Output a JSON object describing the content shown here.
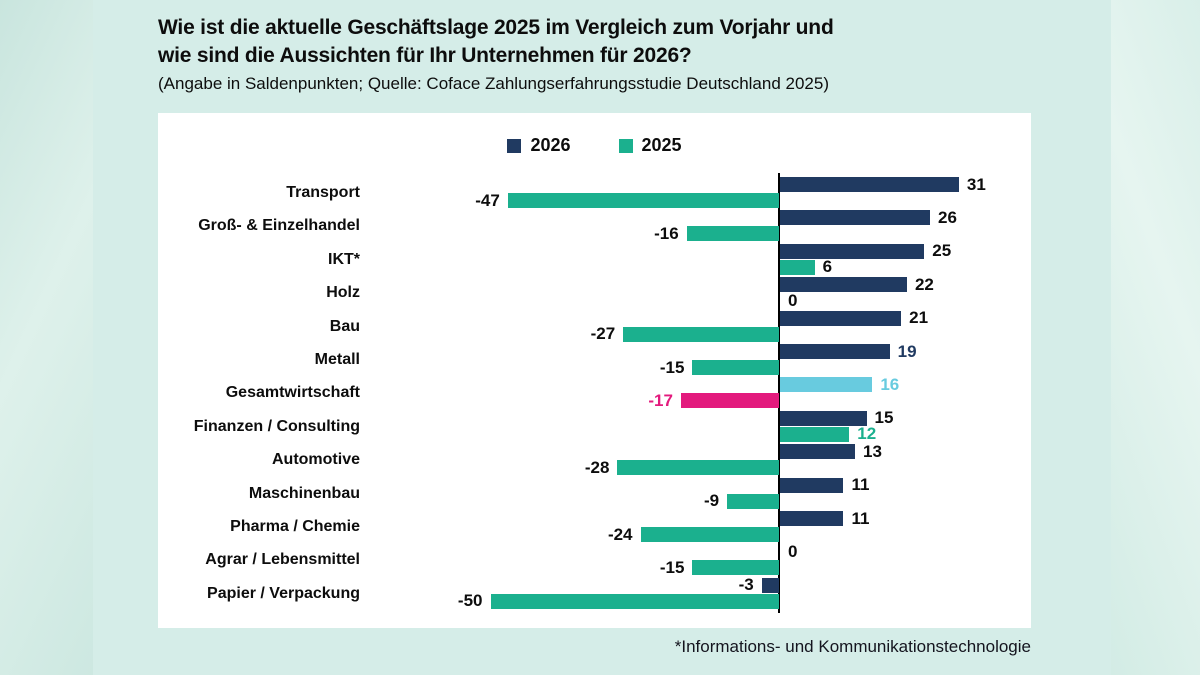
{
  "colors": {
    "navy": "#203a61",
    "teal": "#1bb08e",
    "light_blue": "#68cbdf",
    "pink": "#e31a7d",
    "background": "#d5ede8",
    "panel": "#ffffff",
    "text": "#0d0d0d"
  },
  "chart_data": {
    "type": "bar",
    "orientation": "horizontal",
    "title_line1": "Wie ist die aktuelle Geschäftslage 2025 im Vergleich zum Vorjahr und",
    "title_line2": "wie sind die Aussichten für Ihr Unternehmen für 2026?",
    "subtitle": "(Angabe in Saldenpunkten; Quelle: Coface Zahlungserfahrungsstudie Deutschland 2025)",
    "footnote": "*Informations- und Kommunikationstechnologie",
    "unit": "Saldenpunkte",
    "xlim": [
      -55,
      38
    ],
    "grid": false,
    "axis_ticks_visible": false,
    "value_labels": true,
    "legend_position": "top-center",
    "legend": [
      {
        "label": "2026",
        "color_key": "navy"
      },
      {
        "label": "2025",
        "color_key": "teal"
      }
    ],
    "categories": [
      "Transport",
      "Groß- & Einzelhandel",
      "IKT*",
      "Holz",
      "Bau",
      "Metall",
      "Gesamtwirtschaft",
      "Finanzen / Consulting",
      "Automotive",
      "Maschinenbau",
      "Pharma / Chemie",
      "Agrar / Lebensmittel",
      "Papier / Verpackung"
    ],
    "series": [
      {
        "name": "2026",
        "values": [
          31,
          26,
          25,
          22,
          21,
          19,
          16,
          15,
          13,
          11,
          11,
          0,
          -3
        ]
      },
      {
        "name": "2025",
        "values": [
          -47,
          -16,
          6,
          0,
          -27,
          -15,
          -17,
          12,
          -28,
          -9,
          -24,
          -15,
          -50
        ]
      }
    ],
    "rows": [
      {
        "category": "Transport",
        "v2026": 31,
        "v2025": -47
      },
      {
        "category": "Groß- & Einzelhandel",
        "v2026": 26,
        "v2025": -16
      },
      {
        "category": "IKT*",
        "v2026": 25,
        "v2025": 6
      },
      {
        "category": "Holz",
        "v2026": 22,
        "v2025": 0
      },
      {
        "category": "Bau",
        "v2026": 21,
        "v2025": -27
      },
      {
        "category": "Metall",
        "v2026": 19,
        "v2025": -15,
        "label2026_color": "navy"
      },
      {
        "category": "Gesamtwirtschaft",
        "v2026": 16,
        "v2025": -17,
        "bar2026_color": "light_blue",
        "bar2025_color": "pink",
        "label2026_color": "light_blue",
        "label2025_color": "pink"
      },
      {
        "category": "Finanzen / Consulting",
        "v2026": 15,
        "v2025": 12,
        "label2025_color": "teal"
      },
      {
        "category": "Automotive",
        "v2026": 13,
        "v2025": -28
      },
      {
        "category": "Maschinenbau",
        "v2026": 11,
        "v2025": -9
      },
      {
        "category": "Pharma / Chemie",
        "v2026": 11,
        "v2025": -24
      },
      {
        "category": "Agrar / Lebensmittel",
        "v2026": 0,
        "v2025": -15
      },
      {
        "category": "Papier / Verpackung",
        "v2026": -3,
        "v2025": -50
      }
    ]
  }
}
